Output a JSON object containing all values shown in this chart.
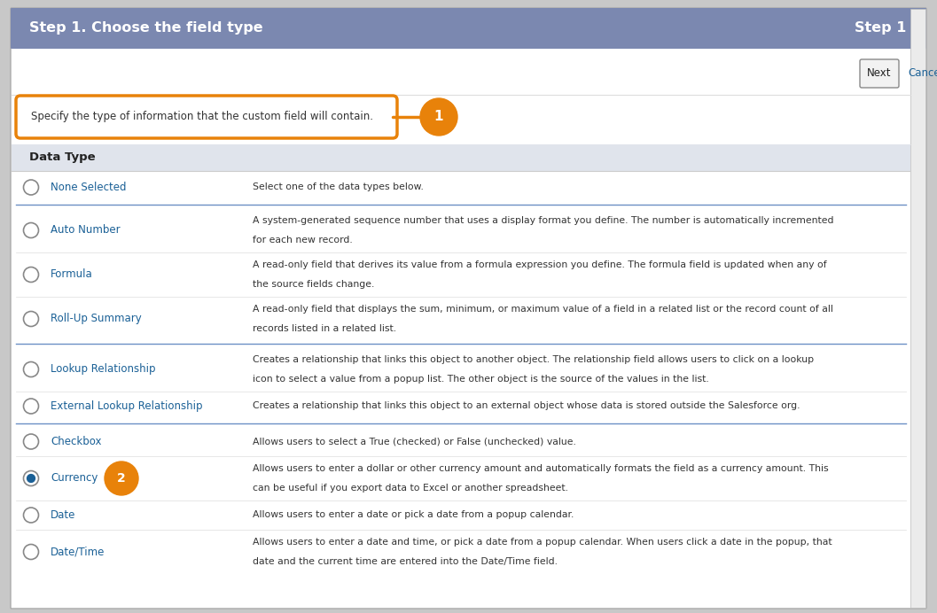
{
  "title_left": "Step 1. Choose the field type",
  "title_right": "Step 1",
  "header_color": "#7B88B0",
  "header_text_color": "#FFFFFF",
  "bg_color": "#FFFFFF",
  "outer_border_color": "#AAAAAA",
  "callout_text": "Specify the type of information that the custom field will contain.",
  "callout_border_color": "#E8820A",
  "callout_bg": "#FFFFFF",
  "badge1_color": "#E8820A",
  "badge2_color": "#E8820A",
  "section_header_bg": "#E0E4EC",
  "section_header_text": "Data Type",
  "link_color": "#1A6096",
  "text_color": "#333333",
  "separator_color": "#6B8FC5",
  "button_next_text": "Next",
  "button_cancel_text": "Cancel",
  "outer_bg": "#C8C8C8",
  "radio_items": [
    {
      "label": "None Selected",
      "description": "Select one of the data types below.",
      "selected": false,
      "group": 0
    },
    {
      "label": "Auto Number",
      "description": "A system-generated sequence number that uses a display format you define. The number is automatically incremented\nfor each new record.",
      "selected": false,
      "group": 1
    },
    {
      "label": "Formula",
      "description": "A read-only field that derives its value from a formula expression you define. The formula field is updated when any of\nthe source fields change.",
      "selected": false,
      "group": 1
    },
    {
      "label": "Roll-Up Summary",
      "description": "A read-only field that displays the sum, minimum, or maximum value of a field in a related list or the record count of all\nrecords listed in a related list.",
      "selected": false,
      "group": 1
    },
    {
      "label": "Lookup Relationship",
      "description": "Creates a relationship that links this object to another object. The relationship field allows users to click on a lookup\nicon to select a value from a popup list. The other object is the source of the values in the list.",
      "selected": false,
      "group": 2
    },
    {
      "label": "External Lookup Relationship",
      "description": "Creates a relationship that links this object to an external object whose data is stored outside the Salesforce org.",
      "selected": false,
      "group": 2
    },
    {
      "label": "Checkbox",
      "description": "Allows users to select a True (checked) or False (unchecked) value.",
      "selected": false,
      "group": 3
    },
    {
      "label": "Currency",
      "description": "Allows users to enter a dollar or other currency amount and automatically formats the field as a currency amount. This\ncan be useful if you export data to Excel or another spreadsheet.",
      "selected": true,
      "group": 3,
      "show_badge2": true
    },
    {
      "label": "Date",
      "description": "Allows users to enter a date or pick a date from a popup calendar.",
      "selected": false,
      "group": 3
    },
    {
      "label": "Date/Time",
      "description": "Allows users to enter a date and time, or pick a date from a popup calendar. When users click a date in the popup, that\ndate and the current time are entered into the Date/Time field.",
      "selected": false,
      "group": 3
    }
  ]
}
